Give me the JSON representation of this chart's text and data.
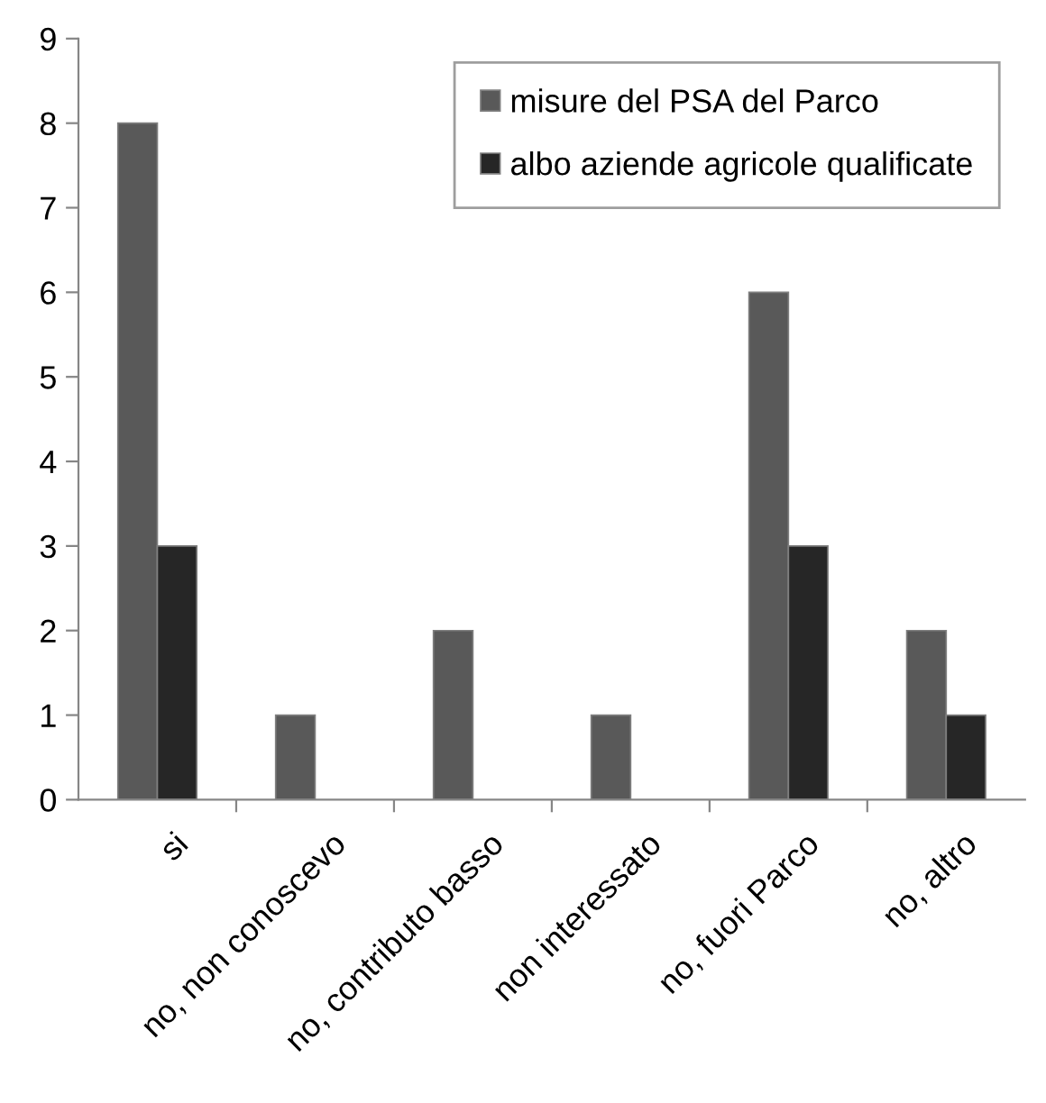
{
  "chart_data": {
    "type": "bar",
    "categories": [
      "si",
      "no, non conoscevo",
      "no, contributo basso",
      "non interessato",
      "no, fuori Parco",
      "no, altro"
    ],
    "series": [
      {
        "name": "misure del PSA del Parco",
        "color": "#595959",
        "values": [
          8,
          1,
          2,
          1,
          6,
          2
        ]
      },
      {
        "name": "albo aziende agricole qualificate",
        "color": "#262626",
        "values": [
          3,
          0,
          0,
          0,
          3,
          1
        ]
      }
    ],
    "ylim": [
      0,
      9
    ],
    "yticks": [
      0,
      1,
      2,
      3,
      4,
      5,
      6,
      7,
      8,
      9
    ],
    "grid": false,
    "legend": "top right"
  }
}
